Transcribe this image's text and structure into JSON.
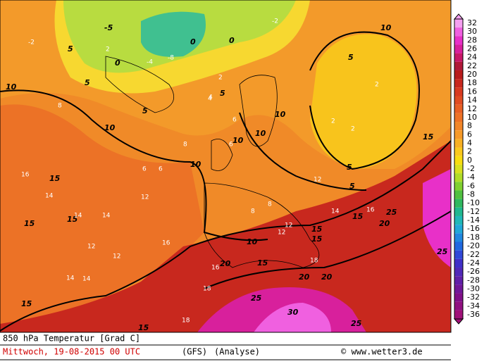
{
  "map": {
    "colorbar": {
      "ticks": [
        32,
        30,
        28,
        26,
        24,
        22,
        20,
        18,
        16,
        14,
        12,
        10,
        8,
        6,
        4,
        2,
        0,
        -2,
        -4,
        -6,
        -8,
        -10,
        -12,
        -14,
        -16,
        -18,
        -20,
        -22,
        -24,
        -26,
        -28,
        -30,
        -32,
        -34,
        -36
      ],
      "colors": [
        "#f5a0f0",
        "#f060e0",
        "#e830c8",
        "#d8209c",
        "#c81868",
        "#b01838",
        "#b81c1c",
        "#c8281e",
        "#d83a20",
        "#e04c22",
        "#e86024",
        "#ee7226",
        "#f28628",
        "#f69a28",
        "#f8b024",
        "#fac81e",
        "#f8dc10",
        "#d8e020",
        "#b0dc28",
        "#80d030",
        "#50c040",
        "#30b860",
        "#20b890",
        "#20b8b8",
        "#20a8d8",
        "#2088e0",
        "#2068e0",
        "#3048d8",
        "#4030c8",
        "#5028b8",
        "#6020a8",
        "#701898",
        "#801088",
        "#901080",
        "#a01078"
      ]
    },
    "contour_labels": [
      5,
      0,
      -5,
      0,
      5,
      5,
      0,
      5,
      10,
      10,
      10,
      10,
      10,
      5,
      15,
      15,
      15,
      15,
      15,
      15,
      10,
      10,
      15,
      15,
      20,
      20,
      20,
      20,
      15,
      25,
      25,
      25,
      30,
      25,
      5,
      15,
      5,
      10
    ],
    "field_labels": [
      2,
      2,
      -2,
      4,
      6,
      8,
      8,
      12,
      14,
      14,
      14,
      12,
      12,
      16,
      14,
      12,
      14,
      16,
      18,
      18,
      16,
      18,
      6,
      6,
      8,
      8,
      12,
      2,
      2,
      2,
      6,
      4,
      12,
      16,
      -2,
      -4,
      -8,
      14
    ],
    "footer": {
      "title": "850 hPa Temperatur [Grad C]",
      "date": "Mittwoch, 19-08-2015  00 UTC",
      "model": "(GFS)",
      "run": "(Analyse)",
      "credit": "© www.wetter3.de"
    }
  }
}
